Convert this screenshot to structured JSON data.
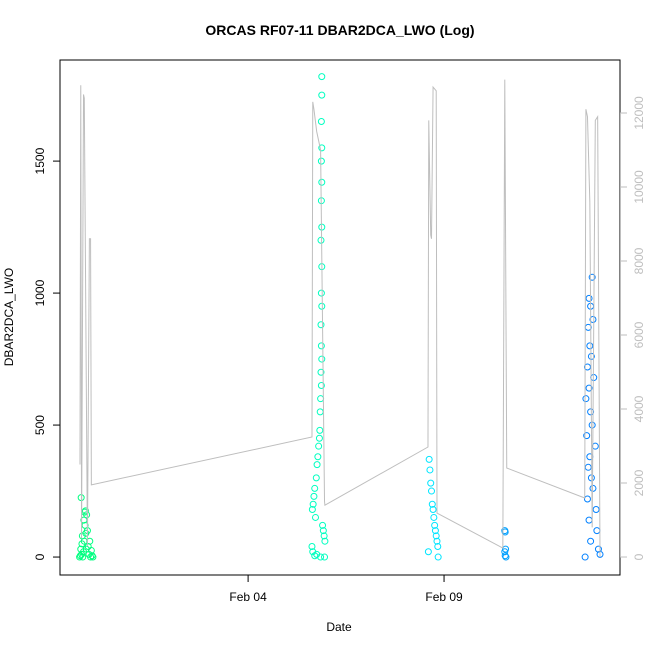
{
  "chart_data": {
    "type": "scatter",
    "title": "ORCAS RF07-11 DBAR2DCA_LWO (Log)",
    "xlabel": "Date",
    "ylabel": "DBAR2DCA_LWO",
    "xlim": [
      -0.8,
      13.49
    ],
    "xticks": [
      {
        "value": 4,
        "label": "Feb 04"
      },
      {
        "value": 9,
        "label": "Feb 09"
      }
    ],
    "ylim": [
      -68,
      1883
    ],
    "yticks": [
      0,
      500,
      1000,
      1500
    ],
    "y2lim": [
      -486,
      13432
    ],
    "y2ticks": [
      0,
      2000,
      4000,
      6000,
      8000,
      10000,
      12000
    ],
    "series": [
      {
        "color": "#00ff80",
        "x": [
          -0.3,
          -0.28,
          -0.27,
          -0.26,
          -0.25,
          -0.24,
          -0.23,
          -0.22,
          -0.2,
          -0.19,
          -0.18,
          -0.17,
          -0.16,
          -0.15,
          -0.14,
          -0.13,
          -0.12,
          -0.1,
          -0.08,
          -0.06,
          -0.04,
          -0.02,
          0.0,
          0.02,
          0.04
        ],
        "values": [
          0,
          5,
          30,
          225,
          10,
          50,
          80,
          0,
          20,
          140,
          60,
          170,
          120,
          175,
          90,
          30,
          160,
          100,
          40,
          10,
          60,
          0,
          25,
          5,
          0
        ]
      },
      {
        "color": "#00ffc0",
        "x": [
          5.88,
          5.88,
          5.87,
          5.88,
          5.87,
          5.88,
          5.87,
          5.88,
          5.86,
          5.88,
          5.87,
          5.88,
          5.86,
          5.87,
          5.88,
          5.86,
          5.87,
          5.85,
          5.84,
          5.83,
          5.82,
          5.8,
          5.78,
          5.76,
          5.74,
          5.7,
          5.68,
          5.66,
          5.64,
          5.72,
          5.9,
          5.92,
          5.94,
          5.96,
          5.63,
          5.65,
          5.75,
          5.85,
          5.95,
          5.7
        ],
        "values": [
          1820,
          1750,
          1650,
          1550,
          1500,
          1420,
          1350,
          1250,
          1200,
          1100,
          1000,
          950,
          880,
          800,
          750,
          700,
          650,
          600,
          550,
          480,
          450,
          420,
          380,
          350,
          300,
          260,
          230,
          200,
          180,
          150,
          120,
          100,
          80,
          60,
          40,
          20,
          10,
          0,
          0,
          5
        ]
      },
      {
        "color": "#00e5ff",
        "x": [
          8.62,
          8.64,
          8.66,
          8.68,
          8.7,
          8.72,
          8.74,
          8.76,
          8.78,
          8.8,
          8.82,
          8.84,
          8.6,
          8.85
        ],
        "values": [
          370,
          330,
          280,
          250,
          200,
          180,
          150,
          120,
          100,
          80,
          60,
          40,
          20,
          0
        ]
      },
      {
        "color": "#00a0ff",
        "x": [
          10.55,
          10.56,
          10.57,
          10.55,
          10.56,
          10.58
        ],
        "values": [
          100,
          95,
          30,
          20,
          5,
          0
        ]
      },
      {
        "color": "#0080ff",
        "x": [
          12.78,
          12.7,
          12.74,
          12.8,
          12.68,
          12.72,
          12.76,
          12.66,
          12.82,
          12.7,
          12.62,
          12.74,
          12.78,
          12.64,
          12.86,
          12.72,
          12.68,
          12.76,
          12.8,
          12.66,
          12.88,
          12.7,
          12.9,
          12.74,
          12.94,
          12.98,
          12.6
        ],
        "values": [
          1060,
          980,
          950,
          900,
          870,
          800,
          760,
          720,
          680,
          640,
          600,
          550,
          500,
          460,
          420,
          380,
          340,
          300,
          260,
          220,
          180,
          140,
          100,
          60,
          30,
          10,
          0
        ]
      },
      {
        "type": "line",
        "axis": "y2",
        "color": "#bebebe",
        "x": [
          -0.29,
          -0.27,
          -0.25,
          -0.2,
          -0.18,
          -0.1,
          -0.05,
          -0.02,
          0.0,
          5.63,
          5.65,
          5.68,
          5.75,
          5.85,
          5.95,
          5.96,
          8.59,
          8.61,
          8.66,
          8.68,
          8.72,
          8.8,
          8.82,
          10.5,
          10.55,
          10.6,
          12.59,
          12.62,
          12.66,
          12.72,
          12.78,
          12.86,
          12.92,
          12.98
        ],
        "values": [
          2500,
          12750,
          500,
          12500,
          12400,
          300,
          8600,
          8600,
          1950,
          3243,
          12300,
          12100,
          11500,
          11000,
          1500,
          1400,
          2973,
          11800,
          8700,
          8600,
          12700,
          12600,
          1189,
          243,
          12900,
          2405,
          1595,
          12100,
          11900,
          9600,
          800,
          11800,
          11900,
          0
        ]
      }
    ]
  }
}
